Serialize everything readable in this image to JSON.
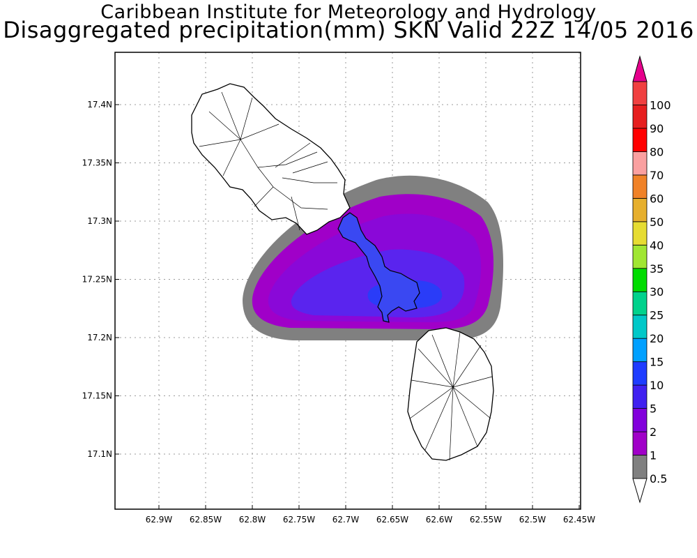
{
  "header": {
    "institute": "Caribbean Institute for Meteorology and Hydrology",
    "product": "Disaggregated precipitation(mm) SKN Valid 22Z 14/05 2016"
  },
  "map": {
    "lon_ticks": [
      "62.9W",
      "62.85W",
      "62.8W",
      "62.75W",
      "62.7W",
      "62.65W",
      "62.6W",
      "62.55W",
      "62.5W",
      "62.45W"
    ],
    "lat_ticks": [
      "17.4N",
      "17.35N",
      "17.3N",
      "17.25N",
      "17.2N",
      "17.15N",
      "17.1N"
    ],
    "grid": true
  },
  "colorbar": {
    "levels": [
      {
        "label": "0.5",
        "color": "#808080"
      },
      {
        "label": "1",
        "color": "#a000c8"
      },
      {
        "label": "2",
        "color": "#8200dc"
      },
      {
        "label": "5",
        "color": "#4020f0"
      },
      {
        "label": "10",
        "color": "#1e3cff"
      },
      {
        "label": "15",
        "color": "#00a0ff"
      },
      {
        "label": "20",
        "color": "#00c8c8"
      },
      {
        "label": "25",
        "color": "#00d28c"
      },
      {
        "label": "30",
        "color": "#00dc00"
      },
      {
        "label": "35",
        "color": "#a0e632"
      },
      {
        "label": "40",
        "color": "#e6dc32"
      },
      {
        "label": "50",
        "color": "#e6af2d"
      },
      {
        "label": "60",
        "color": "#f08228"
      },
      {
        "label": "70",
        "color": "#faa0a0"
      },
      {
        "label": "80",
        "color": "#ff0000"
      },
      {
        "label": "90",
        "color": "#e61e1e"
      },
      {
        "label": "100",
        "color": "#f04040"
      }
    ],
    "upper_arrow_color": "#e6008c",
    "lower_arrow_color": "#ffffff"
  }
}
